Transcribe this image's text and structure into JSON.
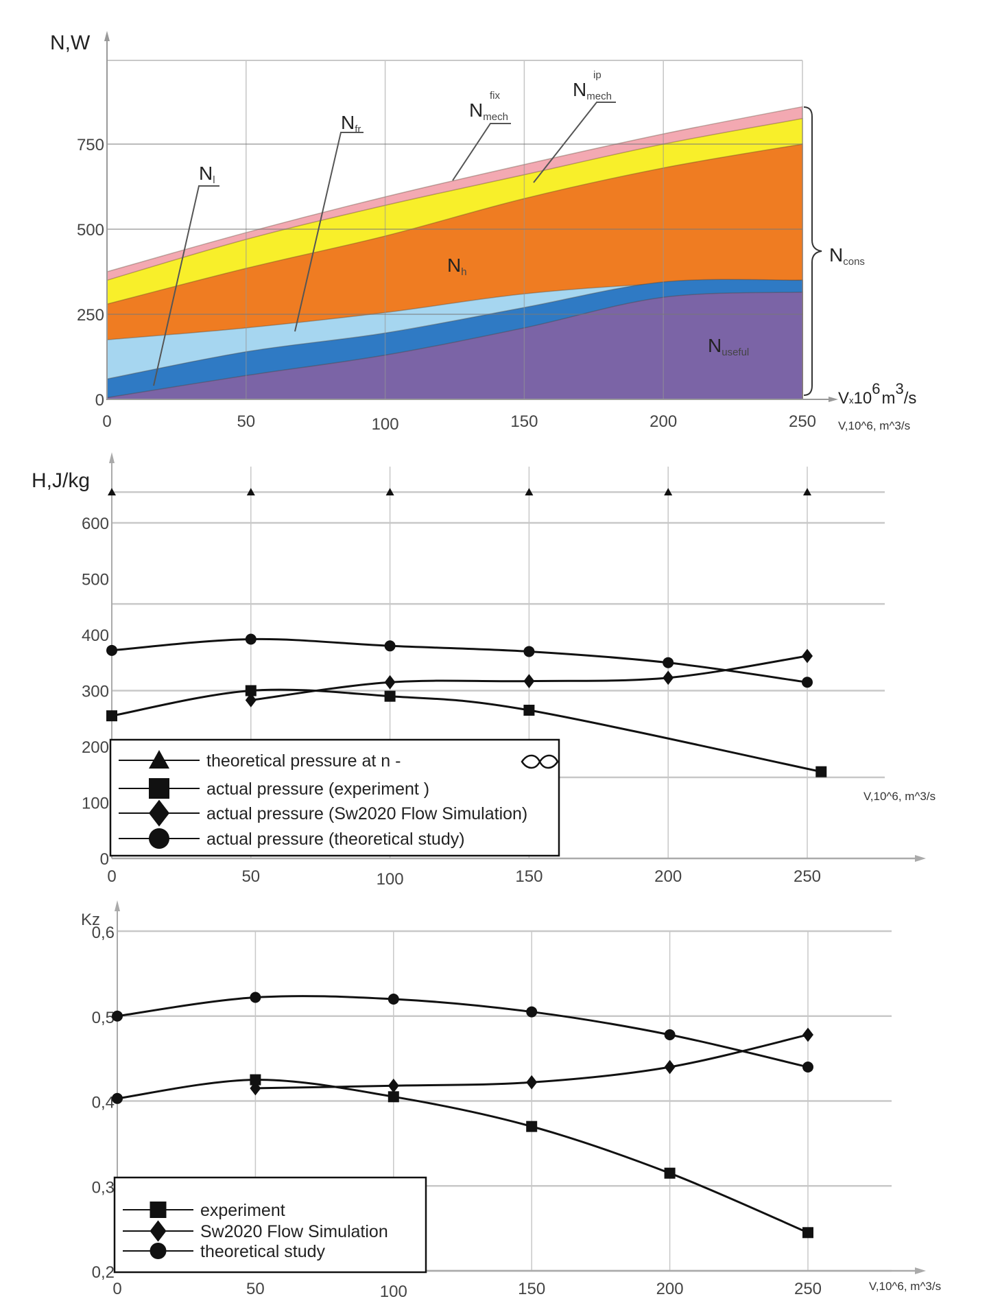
{
  "colors": {
    "grid": "#c8c8c8",
    "line": "#111111",
    "useful": "#7b64a6",
    "leak": "#2f7ac4",
    "friction": "#a6d6f0",
    "hydraulic": "#ef7c22",
    "mech_ip": "#f8ef2a",
    "mech_fix": "#f3a9b2"
  },
  "chart_data": [
    {
      "type": "area",
      "title": "",
      "ylabel": "N,W",
      "xlabel": "V,10^6, m^3/s",
      "xlabel_parts": {
        "base": "V",
        "mult": "x",
        "ten": "10",
        "exp6": "6",
        "unit": "m",
        "exp3": "3",
        "tail": "/s"
      },
      "xlim": [
        0,
        250
      ],
      "ylim": [
        0,
        1000
      ],
      "x": [
        0,
        50,
        100,
        150,
        200,
        250
      ],
      "xticks": [
        "0",
        "50",
        "100",
        "150",
        "200",
        "250"
      ],
      "yticks": [
        {
          "v": 0,
          "label": "0"
        },
        {
          "v": 250,
          "label": "250"
        },
        {
          "v": 500,
          "label": "500"
        },
        {
          "v": 750,
          "label": "750"
        }
      ],
      "stack_tops": [
        {
          "name": "N_useful",
          "color_key": "useful",
          "values": [
            5,
            70,
            130,
            210,
            300,
            315
          ]
        },
        {
          "name": "N_l",
          "color_key": "leak",
          "values": [
            60,
            140,
            195,
            270,
            345,
            350
          ]
        },
        {
          "name": "N_fr",
          "color_key": "friction",
          "values": [
            175,
            210,
            255,
            310,
            340,
            350
          ]
        },
        {
          "name": "N_h",
          "color_key": "hydraulic",
          "values": [
            280,
            385,
            480,
            590,
            680,
            750
          ]
        },
        {
          "name": "N_mech_ip",
          "color_key": "mech_ip",
          "values": [
            350,
            470,
            570,
            660,
            750,
            825
          ]
        },
        {
          "name": "N_mech_fix",
          "color_key": "mech_fix",
          "values": [
            375,
            490,
            595,
            690,
            780,
            860
          ]
        }
      ],
      "annotations": {
        "Nl": {
          "main": "N",
          "sub": "l"
        },
        "Nfr": {
          "main": "N",
          "sub": "fr"
        },
        "Nfix": {
          "main": "N",
          "sub": "mech",
          "sup": "fix"
        },
        "Nip": {
          "main": "N",
          "sub": "mech",
          "sup": "ip"
        },
        "Nh": {
          "main": "N",
          "sub": "h"
        },
        "Ncons": {
          "main": "N",
          "sub": "cons"
        },
        "Nuseful": {
          "main": "N",
          "sub": "useful"
        }
      }
    },
    {
      "type": "line",
      "ylabel": "H,J/kg",
      "xlabel": "V,10^6, m^3/s",
      "xlim": [
        0,
        250
      ],
      "ylim": [
        0,
        700
      ],
      "xticks": [
        "0",
        "50",
        "100",
        "150",
        "200",
        "250"
      ],
      "yticks": [
        {
          "v": 0,
          "label": "0"
        },
        {
          "v": 100,
          "label": "100"
        },
        {
          "v": 200,
          "label": "200"
        },
        {
          "v": 300,
          "label": "300"
        },
        {
          "v": 400,
          "label": "400"
        },
        {
          "v": 500,
          "label": "500"
        },
        {
          "v": 600,
          "label": "600"
        }
      ],
      "hgrid": [
        145,
        300,
        455,
        600,
        655
      ],
      "legend_position": "bottom-left",
      "series": [
        {
          "name": "theoretical pressure at n - ∞",
          "label": "theoretical pressure at n - ",
          "marker": "triangle",
          "line": false,
          "x": [
            0,
            50,
            100,
            150,
            200,
            250
          ],
          "y": [
            655,
            655,
            655,
            655,
            655,
            655
          ]
        },
        {
          "name": "actual pressure (experiment )",
          "label": "actual pressure (experiment )",
          "marker": "square",
          "line": true,
          "x": [
            0,
            50,
            100,
            150,
            255
          ],
          "y": [
            255,
            300,
            290,
            265,
            155
          ]
        },
        {
          "name": "actual pressure (Sw2020 Flow Simulation)",
          "label": "actual pressure (Sw2020 Flow Simulation)",
          "marker": "diamond",
          "line": true,
          "x": [
            50,
            100,
            150,
            200,
            250
          ],
          "y": [
            283,
            315,
            317,
            323,
            362
          ]
        },
        {
          "name": "actual pressure (theoretical study)",
          "label": "actual pressure (theoretical study)",
          "marker": "circle",
          "line": true,
          "x": [
            0,
            50,
            100,
            150,
            200,
            250
          ],
          "y": [
            372,
            392,
            380,
            370,
            350,
            315
          ]
        }
      ]
    },
    {
      "type": "line",
      "ylabel": "Kz",
      "xlabel": "V,10^6, m^3/s",
      "xlim": [
        0,
        250
      ],
      "ylim": [
        0.2,
        0.6
      ],
      "xticks": [
        "0",
        "50",
        "100",
        "150",
        "200",
        "250"
      ],
      "yticks": [
        {
          "v": 0.2,
          "label": "0,2"
        },
        {
          "v": 0.3,
          "label": "0,3"
        },
        {
          "v": 0.4,
          "label": "0,4"
        },
        {
          "v": 0.5,
          "label": "0,5"
        },
        {
          "v": 0.6,
          "label": "0,6"
        }
      ],
      "hgrid": [
        0.2,
        0.3,
        0.4,
        0.5,
        0.6
      ],
      "legend_position": "bottom-left",
      "series": [
        {
          "name": "experiment",
          "label": "experiment",
          "marker": "square",
          "line": true,
          "x": [
            0,
            50,
            100,
            150,
            200,
            250
          ],
          "y": [
            0.403,
            0.425,
            0.405,
            0.37,
            0.315,
            0.245
          ],
          "first_marker": "circle"
        },
        {
          "name": "Sw2020 Flow Simulation",
          "label": "Sw2020 Flow Simulation",
          "marker": "diamond",
          "line": true,
          "x": [
            50,
            100,
            150,
            200,
            250
          ],
          "y": [
            0.415,
            0.418,
            0.422,
            0.44,
            0.478
          ]
        },
        {
          "name": "theoretical study",
          "label": "theoretical study",
          "marker": "circle",
          "line": true,
          "x": [
            0,
            50,
            100,
            150,
            200,
            250
          ],
          "y": [
            0.5,
            0.522,
            0.52,
            0.505,
            0.478,
            0.44
          ]
        }
      ]
    }
  ]
}
